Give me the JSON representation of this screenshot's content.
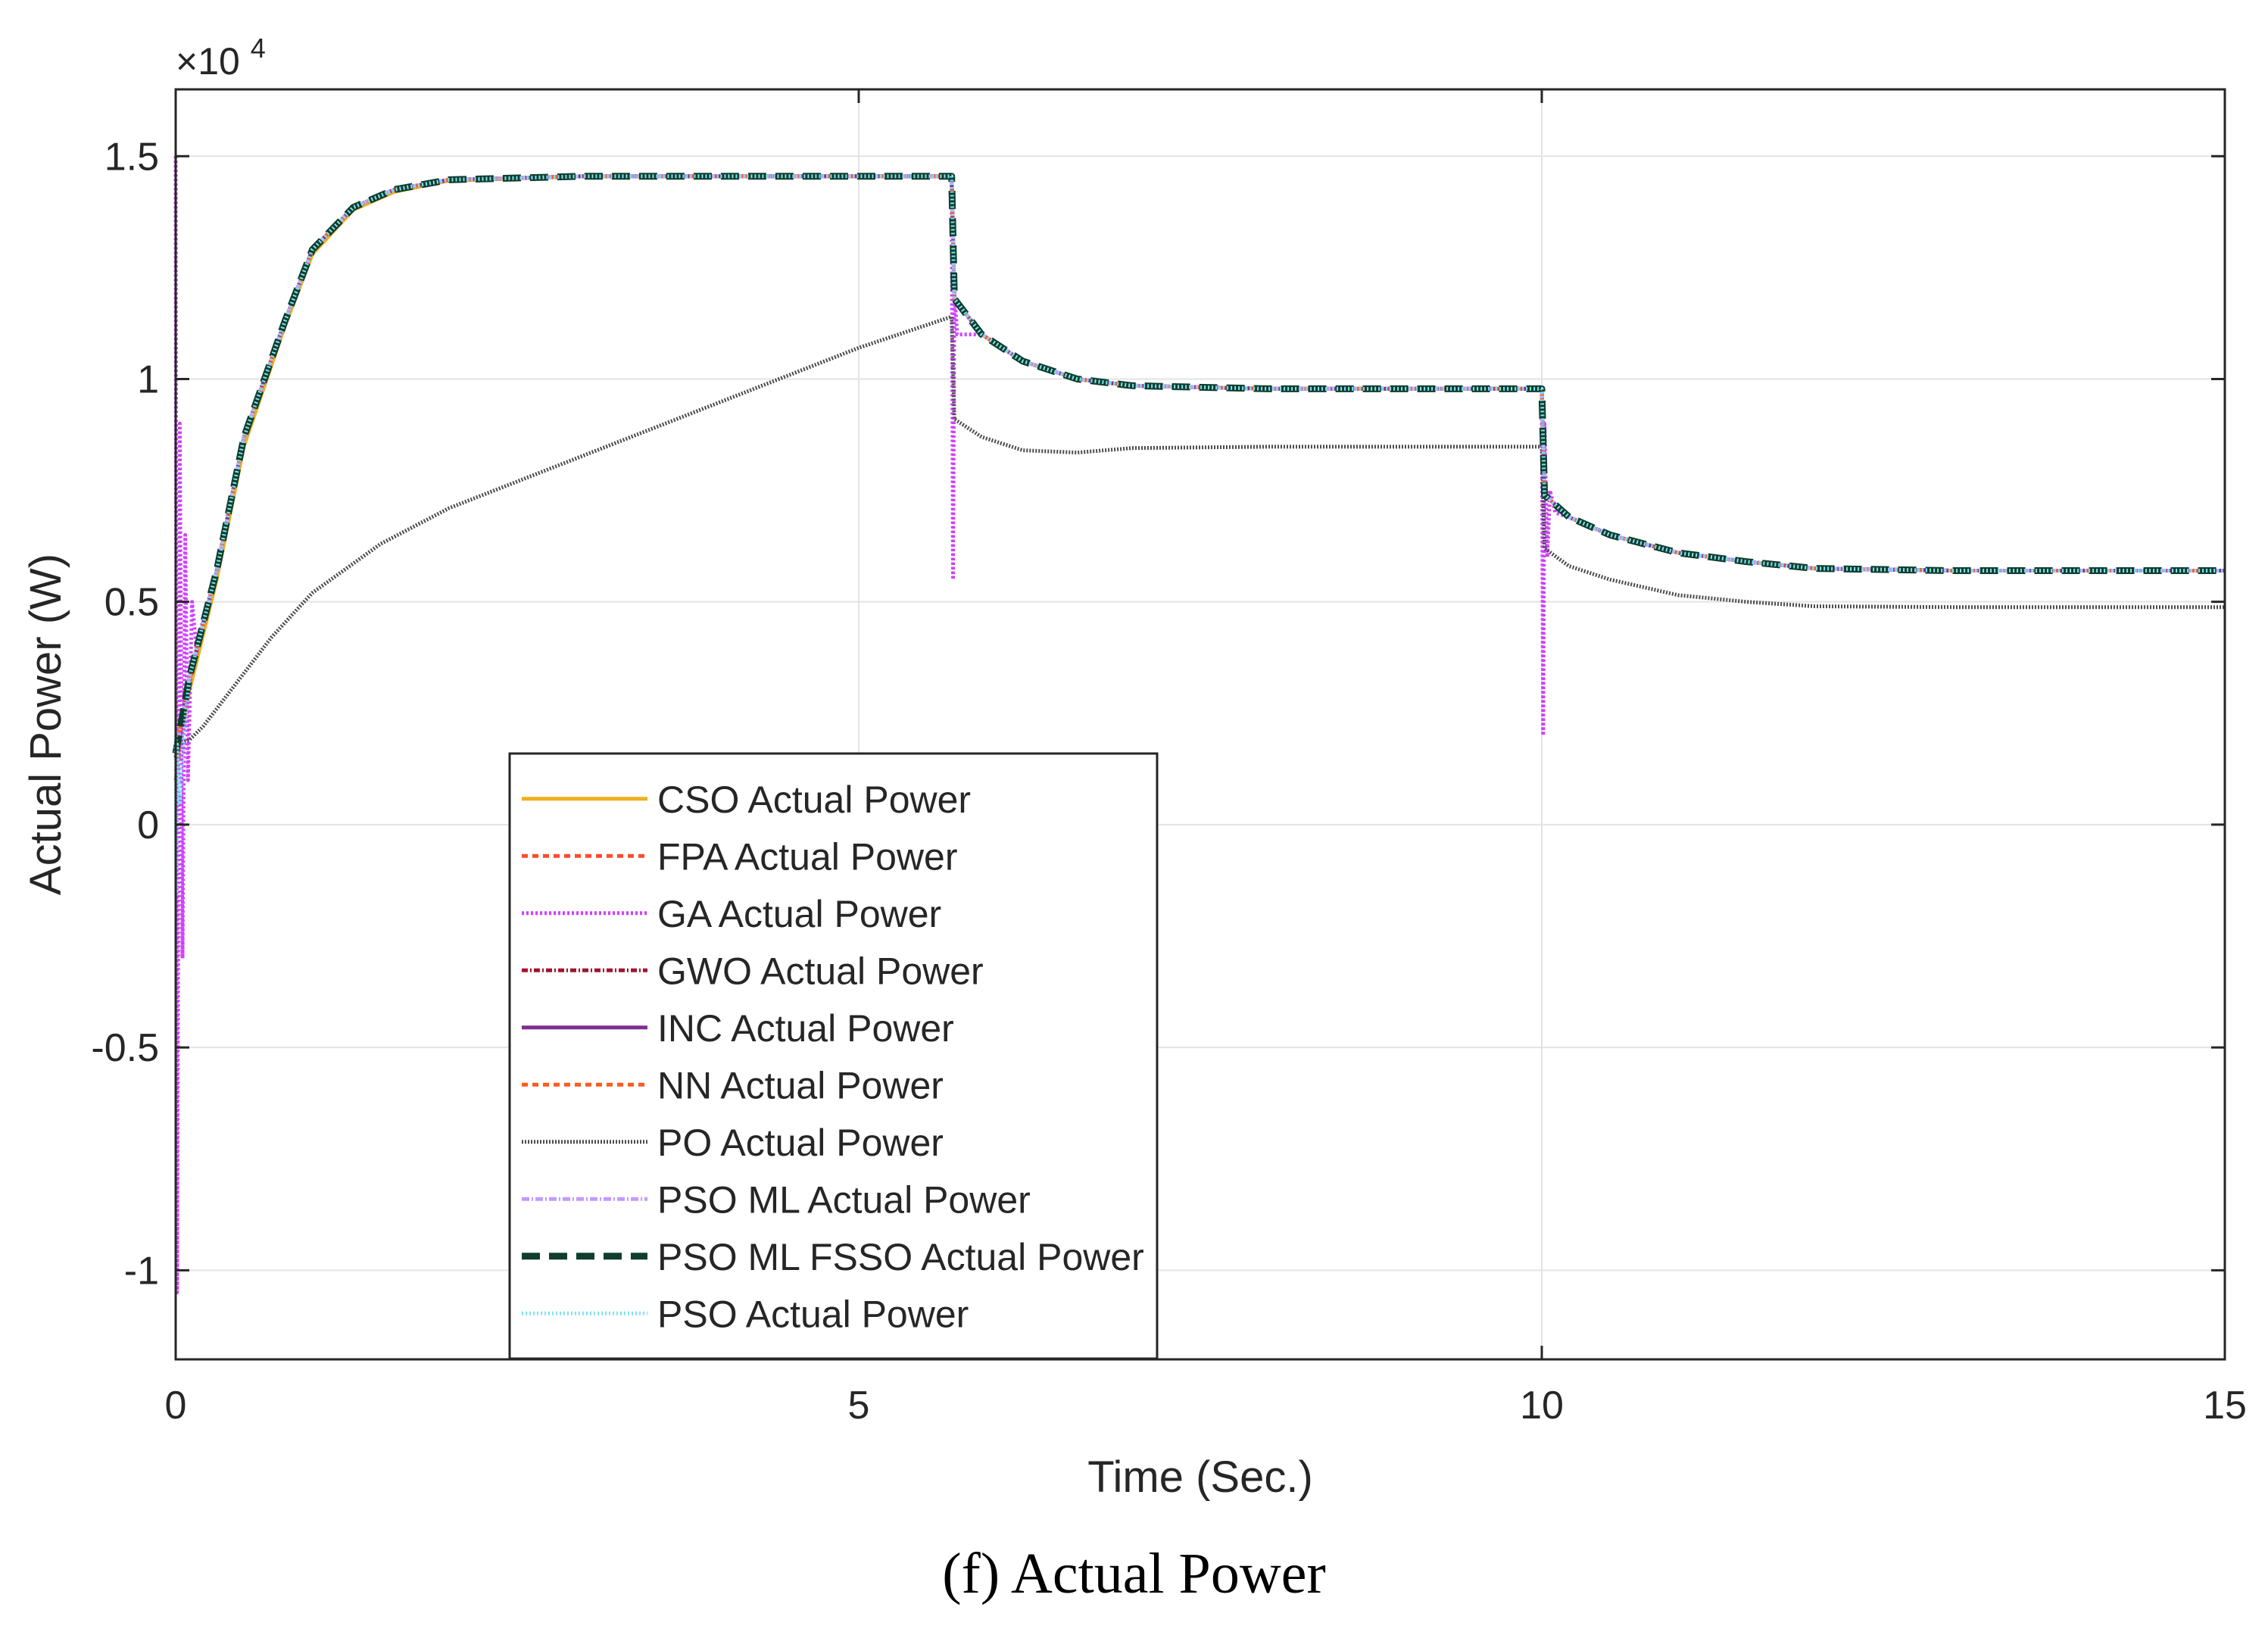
{
  "chart_data": {
    "type": "line",
    "xlabel": "Time (Sec.)",
    "ylabel": "Actual Power (W)",
    "y_exponent_label": "×10",
    "y_exponent_power": "4",
    "xlim": [
      0,
      15
    ],
    "ylim": [
      -1.2,
      1.65
    ],
    "x_ticks": [
      0,
      5,
      10,
      15
    ],
    "x_tick_labels": [
      "0",
      "5",
      "10",
      "15"
    ],
    "y_ticks": [
      -1,
      -0.5,
      0,
      0.5,
      1,
      1.5
    ],
    "y_tick_labels": [
      "-1",
      "-0.5",
      "0",
      "0.5",
      "1",
      "1.5"
    ],
    "grid": true,
    "legend_position": "lower-center",
    "series": [
      {
        "name": "CSO Actual Power",
        "color": "#EDB120",
        "dash": "solid",
        "x": [
          0,
          0.1,
          0.3,
          0.5,
          0.8,
          1.0,
          1.3,
          1.6,
          2.0,
          3.0,
          4.0,
          5.0,
          5.68,
          5.7,
          5.9,
          6.2,
          6.6,
          7.0,
          8.0,
          9.0,
          10.0,
          10.02,
          10.2,
          10.5,
          11.0,
          11.5,
          12.0,
          13.0,
          14.0,
          15.0
        ],
        "y": [
          0.12,
          0.3,
          0.55,
          0.85,
          1.12,
          1.28,
          1.38,
          1.42,
          1.445,
          1.455,
          1.455,
          1.455,
          1.455,
          1.18,
          1.1,
          1.04,
          1.0,
          0.985,
          0.978,
          0.978,
          0.978,
          0.74,
          0.69,
          0.65,
          0.61,
          0.59,
          0.575,
          0.57,
          0.57,
          0.57
        ]
      },
      {
        "name": "FPA Actual Power",
        "color": "#FF4B2B",
        "dash": "8,6",
        "x": [
          0,
          0.1,
          0.3,
          0.5,
          0.8,
          1.0,
          1.3,
          1.6,
          2.0,
          3.0,
          4.0,
          5.0,
          5.68,
          5.7,
          5.9,
          6.2,
          6.6,
          7.0,
          8.0,
          9.0,
          10.0,
          10.02,
          10.2,
          10.5,
          11.0,
          11.5,
          12.0,
          13.0,
          14.0,
          15.0
        ],
        "y": [
          0.1,
          0.32,
          0.57,
          0.87,
          1.13,
          1.29,
          1.385,
          1.425,
          1.447,
          1.455,
          1.455,
          1.455,
          1.455,
          1.18,
          1.1,
          1.04,
          1.0,
          0.985,
          0.978,
          0.978,
          0.978,
          0.74,
          0.69,
          0.65,
          0.61,
          0.59,
          0.575,
          0.57,
          0.57,
          0.57
        ]
      },
      {
        "name": "GA Actual Power",
        "color": "#D040FF",
        "dash": "3,3",
        "x": [
          0,
          0.01,
          0.03,
          0.05,
          0.07,
          0.09,
          0.12,
          0.15,
          0.3,
          0.5,
          0.8,
          1.0,
          1.3,
          1.6,
          2.0,
          3.0,
          4.0,
          5.0,
          5.68,
          5.69,
          5.7,
          5.72,
          5.9,
          6.2,
          6.6,
          7.0,
          8.0,
          9.0,
          10.0,
          10.01,
          10.02,
          10.04,
          10.06,
          10.1,
          10.2,
          10.5,
          11.0,
          11.5,
          12.0,
          13.0,
          14.0,
          15.0
        ],
        "y": [
          1.5,
          -1.05,
          0.9,
          -0.3,
          0.65,
          0.1,
          0.5,
          0.4,
          0.57,
          0.87,
          1.13,
          1.29,
          1.385,
          1.425,
          1.447,
          1.455,
          1.455,
          1.455,
          1.455,
          0.55,
          1.2,
          1.1,
          1.1,
          1.04,
          1.0,
          0.985,
          0.978,
          0.978,
          0.978,
          0.2,
          0.9,
          0.6,
          0.75,
          0.7,
          0.69,
          0.65,
          0.61,
          0.59,
          0.575,
          0.57,
          0.57,
          0.57
        ]
      },
      {
        "name": "GWO Actual Power",
        "color": "#A2142F",
        "dash": "8,3,2,3",
        "x": [
          0,
          0.1,
          0.3,
          0.5,
          0.8,
          1.0,
          1.3,
          1.6,
          2.0,
          3.0,
          4.0,
          5.0,
          5.68,
          5.7,
          5.9,
          6.2,
          6.6,
          7.0,
          8.0,
          9.0,
          10.0,
          10.02,
          10.2,
          10.5,
          11.0,
          11.5,
          12.0,
          13.0,
          14.0,
          15.0
        ],
        "y": [
          0.15,
          0.33,
          0.57,
          0.87,
          1.13,
          1.29,
          1.385,
          1.425,
          1.447,
          1.455,
          1.455,
          1.455,
          1.455,
          1.18,
          1.1,
          1.04,
          1.0,
          0.985,
          0.978,
          0.978,
          0.978,
          0.74,
          0.69,
          0.65,
          0.61,
          0.59,
          0.575,
          0.57,
          0.57,
          0.57
        ]
      },
      {
        "name": "INC Actual Power",
        "color": "#7E2F8E",
        "dash": "solid",
        "x": [
          0,
          0.1,
          0.3,
          0.5,
          0.8,
          1.0,
          1.3,
          1.6,
          2.0,
          3.0,
          4.0,
          5.0,
          5.68,
          5.7,
          5.9,
          6.2,
          6.6,
          7.0,
          8.0,
          9.0,
          10.0,
          10.02,
          10.2,
          10.5,
          11.0,
          11.5,
          12.0,
          13.0,
          14.0,
          15.0
        ],
        "y": [
          0.16,
          0.33,
          0.57,
          0.87,
          1.13,
          1.29,
          1.385,
          1.425,
          1.447,
          1.455,
          1.455,
          1.455,
          1.455,
          1.18,
          1.1,
          1.04,
          1.0,
          0.985,
          0.978,
          0.978,
          0.978,
          0.74,
          0.69,
          0.65,
          0.61,
          0.59,
          0.575,
          0.57,
          0.57,
          0.57
        ]
      },
      {
        "name": "NN Actual Power",
        "color": "#FF5A1F",
        "dash": "8,6",
        "x": [
          0,
          0.1,
          0.3,
          0.5,
          0.8,
          1.0,
          1.3,
          1.6,
          2.0,
          3.0,
          4.0,
          5.0,
          5.68,
          5.7,
          5.9,
          6.2,
          6.6,
          7.0,
          8.0,
          9.0,
          10.0,
          10.02,
          10.2,
          10.5,
          11.0,
          11.5,
          12.0,
          13.0,
          14.0,
          15.0
        ],
        "y": [
          0.16,
          0.33,
          0.57,
          0.87,
          1.13,
          1.29,
          1.385,
          1.425,
          1.447,
          1.455,
          1.455,
          1.455,
          1.455,
          1.18,
          1.1,
          1.04,
          1.0,
          0.985,
          0.978,
          0.978,
          0.978,
          0.74,
          0.69,
          0.65,
          0.61,
          0.59,
          0.575,
          0.57,
          0.57,
          0.57
        ]
      },
      {
        "name": "PO Actual Power",
        "color": "#4D4D4D",
        "dash": "2,2",
        "x": [
          0,
          0.1,
          0.2,
          0.4,
          0.7,
          1.0,
          1.5,
          2.0,
          2.5,
          3.0,
          4.0,
          5.0,
          5.68,
          5.7,
          5.9,
          6.2,
          6.6,
          7.0,
          8.0,
          9.0,
          10.0,
          10.02,
          10.2,
          10.5,
          11.0,
          11.5,
          12.0,
          13.0,
          14.0,
          15.0
        ],
        "y": [
          0.18,
          0.19,
          0.22,
          0.3,
          0.42,
          0.52,
          0.63,
          0.71,
          0.77,
          0.83,
          0.95,
          1.07,
          1.14,
          0.91,
          0.87,
          0.84,
          0.835,
          0.845,
          0.848,
          0.848,
          0.848,
          0.62,
          0.58,
          0.55,
          0.515,
          0.5,
          0.49,
          0.488,
          0.488,
          0.488
        ]
      },
      {
        "name": "PSO ML Actual Power",
        "color": "#C39BFF",
        "dash": "10,3,2,3",
        "x": [
          0,
          0.1,
          0.3,
          0.5,
          0.8,
          1.0,
          1.3,
          1.6,
          2.0,
          3.0,
          4.0,
          5.0,
          5.68,
          5.7,
          5.9,
          6.2,
          6.6,
          7.0,
          8.0,
          9.0,
          10.0,
          10.02,
          10.2,
          10.5,
          11.0,
          11.5,
          12.0,
          13.0,
          14.0,
          15.0
        ],
        "y": [
          0.16,
          0.33,
          0.57,
          0.87,
          1.13,
          1.29,
          1.385,
          1.425,
          1.447,
          1.455,
          1.455,
          1.455,
          1.455,
          1.18,
          1.1,
          1.04,
          1.0,
          0.985,
          0.978,
          0.978,
          0.978,
          0.74,
          0.69,
          0.65,
          0.61,
          0.59,
          0.575,
          0.57,
          0.57,
          0.57
        ]
      },
      {
        "name": "PSO ML FSSO Actual Power",
        "color": "#0F3D2E",
        "dash": "24,12",
        "x": [
          0,
          0.1,
          0.3,
          0.5,
          0.8,
          1.0,
          1.3,
          1.6,
          2.0,
          3.0,
          4.0,
          5.0,
          5.68,
          5.7,
          5.9,
          6.2,
          6.6,
          7.0,
          8.0,
          9.0,
          10.0,
          10.02,
          10.2,
          10.5,
          11.0,
          11.5,
          12.0,
          13.0,
          14.0,
          15.0
        ],
        "y": [
          0.16,
          0.33,
          0.57,
          0.87,
          1.13,
          1.29,
          1.385,
          1.425,
          1.447,
          1.455,
          1.455,
          1.455,
          1.455,
          1.18,
          1.1,
          1.04,
          1.0,
          0.985,
          0.978,
          0.978,
          0.978,
          0.74,
          0.69,
          0.65,
          0.61,
          0.59,
          0.575,
          0.57,
          0.57,
          0.57
        ]
      },
      {
        "name": "PSO Actual Power",
        "color": "#7FE3F0",
        "dash": "2,3",
        "x": [
          0,
          0.005,
          0.01,
          0.03,
          0.06,
          0.1,
          0.3,
          0.5,
          0.8,
          1.0,
          1.3,
          1.6,
          2.0,
          3.0,
          4.0,
          5.0,
          5.68,
          5.7,
          5.9,
          6.2,
          6.6,
          7.0,
          8.0,
          9.0,
          10.0,
          10.02,
          10.2,
          10.5,
          11.0,
          11.5,
          12.0,
          13.0,
          14.0,
          15.0
        ],
        "y": [
          0.2,
          -0.15,
          0.18,
          0.05,
          0.2,
          0.33,
          0.57,
          0.87,
          1.13,
          1.29,
          1.385,
          1.425,
          1.447,
          1.455,
          1.455,
          1.455,
          1.455,
          1.18,
          1.1,
          1.04,
          1.0,
          0.985,
          0.978,
          0.978,
          0.978,
          0.74,
          0.69,
          0.65,
          0.61,
          0.59,
          0.575,
          0.57,
          0.57,
          0.57
        ]
      }
    ]
  },
  "caption": {
    "letter": "(f",
    "close": ")",
    "text": " Actual Power"
  }
}
